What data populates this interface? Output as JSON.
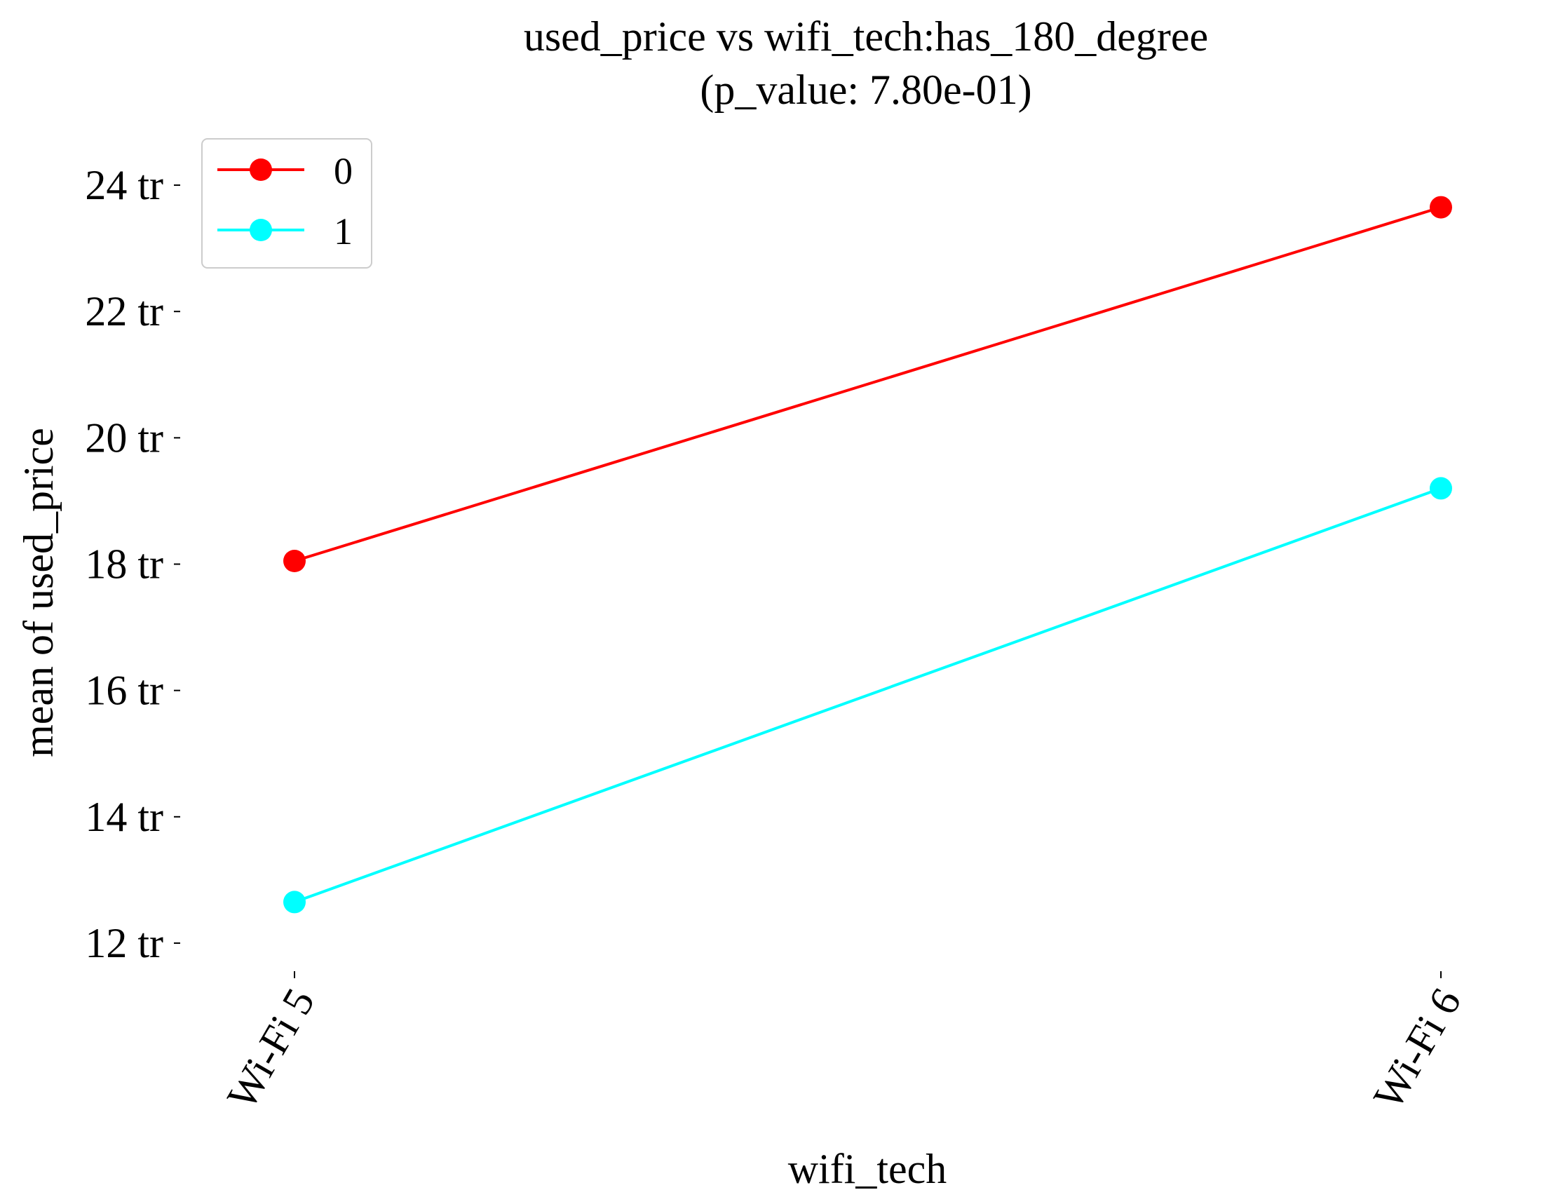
{
  "chart_data": {
    "type": "line",
    "title": "used_price vs wifi_tech:has_180_degree",
    "subtitle": "(p_value: 7.80e-01)",
    "xlabel": "wifi_tech",
    "ylabel": "mean of used_price",
    "categories": [
      "Wi-Fi 5",
      "Wi-Fi 6"
    ],
    "y_ticks": [
      12,
      14,
      16,
      18,
      20,
      22,
      24
    ],
    "y_tick_labels": [
      "12 tr",
      "14 tr",
      "16 tr",
      "18 tr",
      "20 tr",
      "22 tr",
      "24 tr"
    ],
    "ylim": [
      11.5,
      24.6
    ],
    "grid": false,
    "legend_position": "top-left",
    "series": [
      {
        "name": "0",
        "color": "#ff0000",
        "values": [
          18.05,
          23.65
        ]
      },
      {
        "name": "1",
        "color": "#00ffff",
        "values": [
          12.65,
          19.2
        ]
      }
    ]
  }
}
